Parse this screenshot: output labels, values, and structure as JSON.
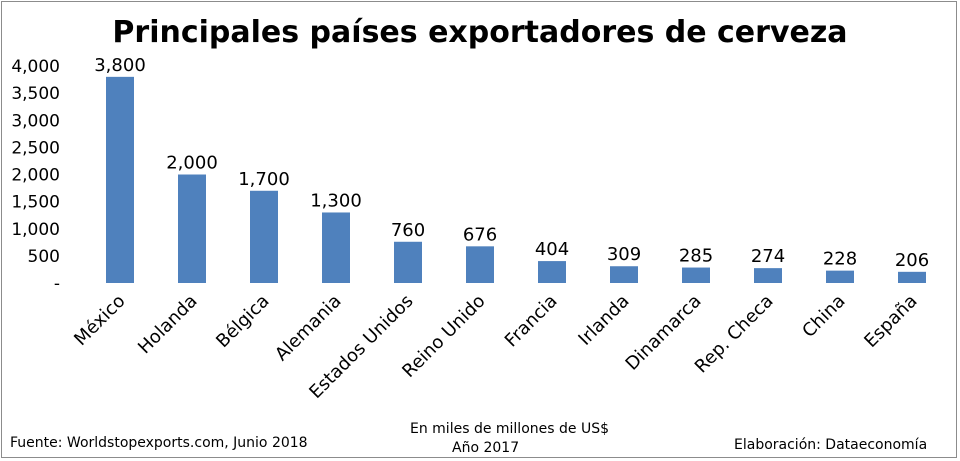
{
  "chart_data": {
    "type": "bar",
    "title": "Principales países exportadores de cerveza",
    "categories": [
      "México",
      "Holanda",
      "Bélgica",
      "Alemania",
      "Estados Unidos",
      "Reino Unido",
      "Francia",
      "Irlanda",
      "Dinamarca",
      "Rep. Checa",
      "China",
      "España"
    ],
    "values": [
      3800,
      2000,
      1700,
      1300,
      760,
      676,
      404,
      309,
      285,
      274,
      228,
      206
    ],
    "value_labels": [
      "3,800",
      "2,000",
      "1,700",
      "1,300",
      "760",
      "676",
      "404",
      "309",
      "285",
      "274",
      "228",
      "206"
    ],
    "ylim": [
      0,
      4000
    ],
    "yticks": [
      0,
      500,
      1000,
      1500,
      2000,
      2500,
      3000,
      3500,
      4000
    ],
    "ytick_labels": [
      "-",
      "500",
      "1,000",
      "1,500",
      "2,000",
      "2,500",
      "3,000",
      "3,500",
      "4,000"
    ],
    "grid": false,
    "legend": "none",
    "bar_color": "#4f81bd"
  },
  "footer": {
    "source": "Fuente: Worldstopexports.com, Junio 2018",
    "units": "En miles de millones de US$",
    "year": "Año 2017",
    "credit": "Elaboración: Dataeconomía"
  }
}
